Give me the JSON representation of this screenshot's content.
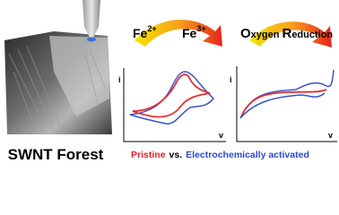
{
  "image": {
    "label": "SWNT Forest"
  },
  "legend": {
    "pristine": "Pristine",
    "separator": "vs.",
    "activated": "Electrochemically activated"
  },
  "panels": [
    {
      "reaction": {
        "reactant": "Fe",
        "reactant_charge": "2+",
        "product": "Fe",
        "product_charge": "3+"
      },
      "y_axis": "i",
      "x_axis": "v"
    },
    {
      "reaction": {
        "parts": [
          "O",
          "xygen",
          "R",
          "eduction"
        ]
      },
      "y_axis": "i",
      "x_axis": "v"
    }
  ]
}
